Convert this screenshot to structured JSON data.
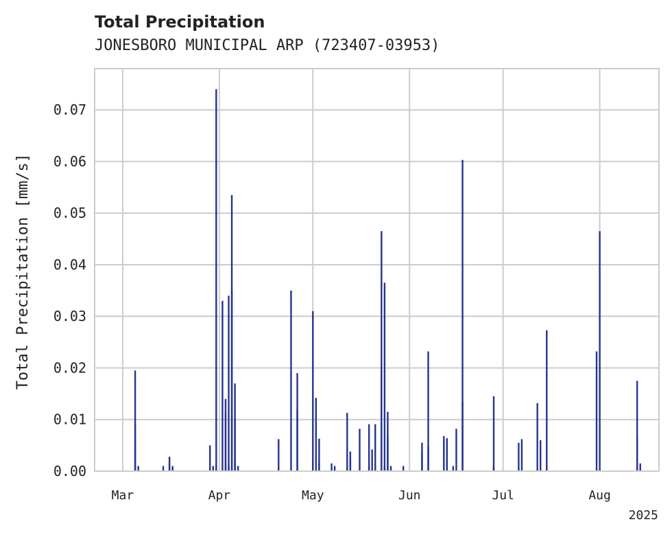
{
  "colors": {
    "bar": "#25338f",
    "grid": "#cccccc",
    "frame": "#cccccc",
    "text": "#222222",
    "background": "#ffffff"
  },
  "chart_data": {
    "type": "bar",
    "title": "Total Precipitation",
    "subtitle": "JONESBORO MUNICIPAL ARP (723407-03953)",
    "xlabel": "",
    "ylabel": "Total Precipitation [mm/s]",
    "x_year_label": "2025",
    "grid": true,
    "ylim": [
      0.0,
      0.078
    ],
    "xlim": [
      "2025-02-20",
      "2025-08-20"
    ],
    "y_ticks": [
      0.0,
      0.01,
      0.02,
      0.03,
      0.04,
      0.05,
      0.06,
      0.07
    ],
    "y_tick_labels": [
      "0.00",
      "0.01",
      "0.02",
      "0.03",
      "0.04",
      "0.05",
      "0.06",
      "0.07"
    ],
    "x_ticks": [
      {
        "date": "2025-03-01",
        "label": "Mar"
      },
      {
        "date": "2025-04-01",
        "label": "Apr"
      },
      {
        "date": "2025-05-01",
        "label": "May"
      },
      {
        "date": "2025-06-01",
        "label": "Jun"
      },
      {
        "date": "2025-07-01",
        "label": "Jul"
      },
      {
        "date": "2025-08-01",
        "label": "Aug"
      }
    ],
    "x_dates": [
      "2025-03-05",
      "2025-03-05",
      "2025-03-05",
      "2025-03-06",
      "2025-03-14",
      "2025-03-16",
      "2025-03-16",
      "2025-03-17",
      "2025-03-29",
      "2025-03-30",
      "2025-03-31",
      "2025-03-31",
      "2025-04-02",
      "2025-04-03",
      "2025-04-03",
      "2025-04-04",
      "2025-04-04",
      "2025-04-05",
      "2025-04-05",
      "2025-04-06",
      "2025-04-06",
      "2025-04-06",
      "2025-04-07",
      "2025-04-20",
      "2025-04-24",
      "2025-04-26",
      "2025-04-26",
      "2025-05-01",
      "2025-05-01",
      "2025-05-02",
      "2025-05-03",
      "2025-05-03",
      "2025-05-07",
      "2025-05-08",
      "2025-05-12",
      "2025-05-12",
      "2025-05-13",
      "2025-05-13",
      "2025-05-16",
      "2025-05-19",
      "2025-05-19",
      "2025-05-20",
      "2025-05-21",
      "2025-05-21",
      "2025-05-23",
      "2025-05-23",
      "2025-05-24",
      "2025-05-24",
      "2025-05-25",
      "2025-05-25",
      "2025-05-26",
      "2025-05-30",
      "2025-06-05",
      "2025-06-05",
      "2025-06-07",
      "2025-06-07",
      "2025-06-12",
      "2025-06-13",
      "2025-06-13",
      "2025-06-15",
      "2025-06-16",
      "2025-06-18",
      "2025-06-18",
      "2025-06-28",
      "2025-06-28",
      "2025-07-06",
      "2025-07-07",
      "2025-07-12",
      "2025-07-13",
      "2025-07-15",
      "2025-07-31",
      "2025-08-01",
      "2025-08-13",
      "2025-08-13",
      "2025-08-14"
    ],
    "values": [
      0.005,
      0.009,
      0.0195,
      0.001,
      0.001,
      0.0028,
      0.0015,
      0.001,
      0.005,
      0.001,
      0.074,
      0.001,
      0.033,
      0.014,
      0.0115,
      0.001,
      0.034,
      0.035,
      0.0535,
      0.017,
      0.01,
      0.002,
      0.001,
      0.0062,
      0.035,
      0.019,
      0.012,
      0.031,
      0.002,
      0.0142,
      0.0063,
      0.0015,
      0.0015,
      0.001,
      0.0113,
      0.001,
      0.0038,
      0.0025,
      0.0082,
      0.0091,
      0.001,
      0.0042,
      0.0091,
      0.001,
      0.0205,
      0.0465,
      0.001,
      0.0365,
      0.0115,
      0.0068,
      0.001,
      0.001,
      0.0055,
      0.0035,
      0.0232,
      0.005,
      0.0068,
      0.0064,
      0.002,
      0.001,
      0.0082,
      0.0603,
      0.0135,
      0.0145,
      0.001,
      0.0055,
      0.0062,
      0.0132,
      0.006,
      0.0273,
      0.0232,
      0.0465,
      0.0068,
      0.0175,
      0.0015
    ]
  }
}
